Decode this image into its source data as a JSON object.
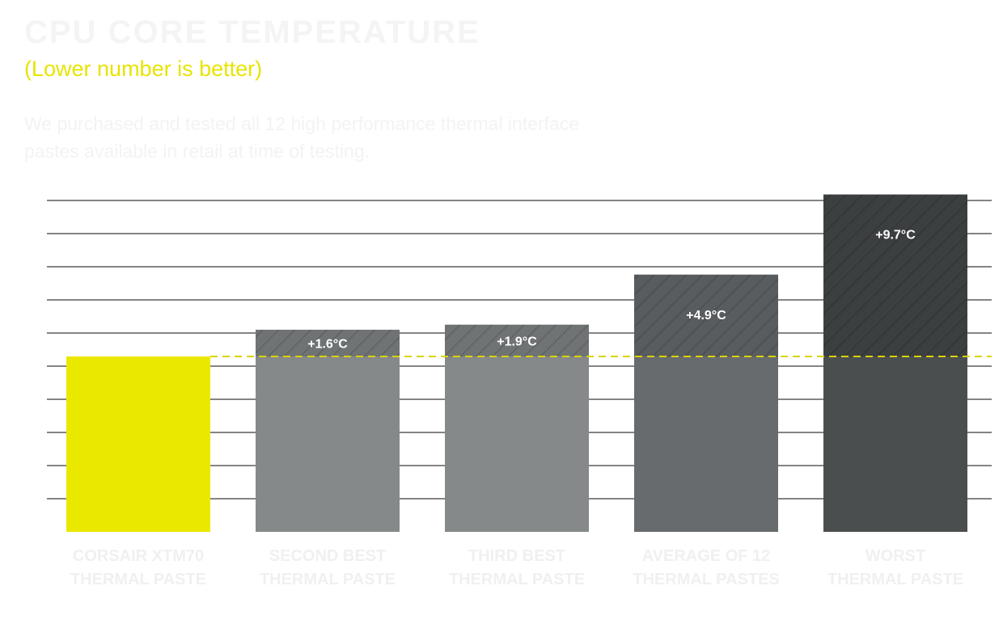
{
  "header": {
    "title": "CPU CORE TEMPERATURE",
    "subtitle": "(Lower number is better)",
    "description": "We purchased and tested all 12 high performance thermal interface pastes available in retail at time of testing."
  },
  "colors": {
    "highlight": "#ebe800",
    "gridline": "#3a3a3a",
    "baseline_dash": "#d9d300",
    "category_label": "#f0f0f0",
    "bars": [
      "#ebe800",
      "#85898a",
      "#85898a",
      "#676b6d",
      "#4b4e4f"
    ],
    "bar_tops": [
      "#ebe800",
      "#6f7374",
      "#6f7374",
      "#585c5e",
      "#3c3f40"
    ]
  },
  "chart_data": {
    "type": "bar",
    "categories": [
      [
        "CORSAIR XTM70",
        "THERMAL PASTE"
      ],
      [
        "SECOND BEST",
        "THERMAL PASTE"
      ],
      [
        "THIRD BEST",
        "THERMAL PASTE"
      ],
      [
        "AVERAGE OF 12",
        "THERMAL PASTES"
      ],
      [
        "WORST",
        "THERMAL PASTE"
      ]
    ],
    "delta_labels": [
      "",
      "+1.6°C",
      "+1.9°C",
      "+4.9°C",
      "+9.7°C"
    ],
    "deltas_c": [
      0,
      1.6,
      1.9,
      4.9,
      9.7
    ],
    "baseline_relative": 0,
    "baseline_style": "dashed",
    "grid": true,
    "y_axis_labels": false
  }
}
